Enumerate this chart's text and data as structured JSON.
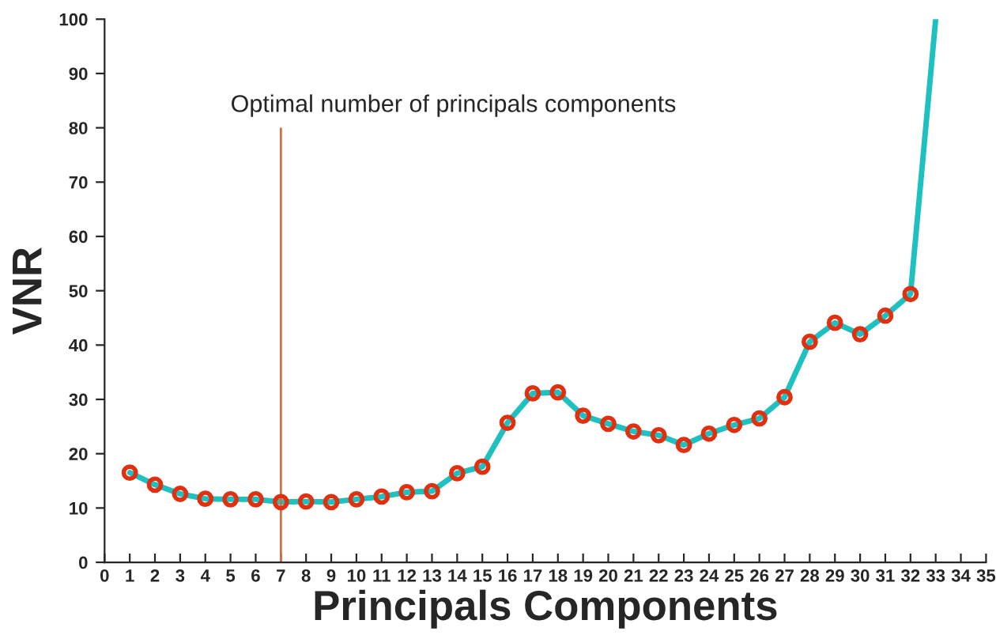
{
  "chart_data": {
    "type": "line",
    "xlabel": "Principals Components",
    "ylabel": "VNR",
    "series": [
      {
        "color": "#1fc0c0",
        "marker": "none",
        "x": [
          1,
          2,
          3,
          4,
          5,
          6,
          7,
          8,
          9,
          10,
          11,
          12,
          13,
          14,
          15,
          16,
          17,
          18,
          19,
          20,
          21,
          22,
          23,
          24,
          25,
          26,
          27,
          28,
          29,
          30,
          31,
          32,
          33
        ],
        "values": [
          16.5,
          14.3,
          12.6,
          11.7,
          11.6,
          11.6,
          11.1,
          11.2,
          11.1,
          11.6,
          12.1,
          12.9,
          13.1,
          16.4,
          17.6,
          25.7,
          31.1,
          31.3,
          27.0,
          25.5,
          24.1,
          23.4,
          21.6,
          23.7,
          25.3,
          26.5,
          30.4,
          40.6,
          44.1,
          42.0,
          45.4,
          49.4,
          100
        ]
      },
      {
        "type": "scatter",
        "color": "#e03010",
        "marker": "circle",
        "x": [
          1,
          2,
          3,
          4,
          5,
          6,
          7,
          8,
          9,
          10,
          11,
          12,
          13,
          14,
          15,
          16,
          17,
          18,
          19,
          20,
          21,
          22,
          23,
          24,
          25,
          26,
          27,
          28,
          29,
          30,
          31,
          32
        ],
        "values": [
          16.5,
          14.3,
          12.6,
          11.7,
          11.6,
          11.6,
          11.1,
          11.2,
          11.1,
          11.6,
          12.1,
          12.9,
          13.1,
          16.4,
          17.6,
          25.7,
          31.1,
          31.3,
          27.0,
          25.5,
          24.1,
          23.4,
          21.6,
          23.7,
          25.3,
          26.5,
          30.4,
          40.6,
          44.1,
          42.0,
          45.4,
          49.4
        ]
      }
    ],
    "xlim": [
      0,
      35
    ],
    "xticks": [
      0,
      1,
      2,
      3,
      4,
      5,
      6,
      7,
      8,
      9,
      10,
      11,
      12,
      13,
      14,
      15,
      16,
      17,
      18,
      19,
      20,
      21,
      22,
      23,
      24,
      25,
      26,
      27,
      28,
      29,
      30,
      31,
      32,
      33,
      34,
      35
    ],
    "ylim": [
      0,
      100
    ],
    "yticks": [
      0,
      10,
      20,
      30,
      40,
      50,
      60,
      70,
      80,
      90,
      100
    ],
    "ref_lines": [
      {
        "axis": "x",
        "value": 7,
        "label": "Optimal number of principals components",
        "color": "#c8704a"
      }
    ],
    "grid": false,
    "legend": false
  }
}
